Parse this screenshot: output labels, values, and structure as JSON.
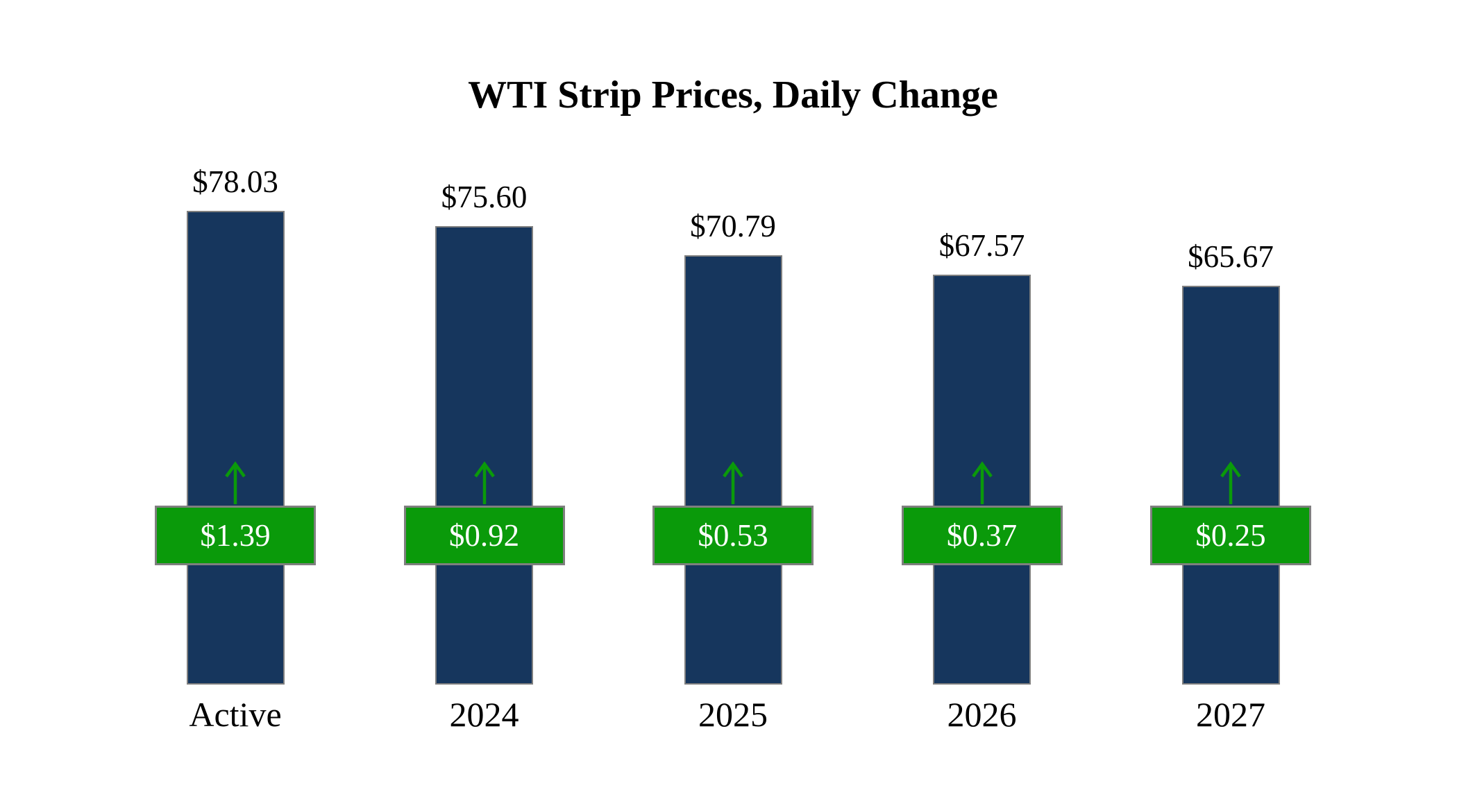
{
  "chart_data": {
    "type": "bar",
    "title": "WTI Strip Prices, Daily Change",
    "categories": [
      "Active",
      "2024",
      "2025",
      "2026",
      "2027"
    ],
    "series": [
      {
        "name": "Strip Price",
        "values": [
          78.03,
          75.6,
          70.79,
          67.57,
          65.67
        ]
      },
      {
        "name": "Daily Change",
        "values": [
          1.39,
          0.92,
          0.53,
          0.37,
          0.25
        ]
      }
    ],
    "value_labels": [
      "$78.03",
      "$75.60",
      "$70.79",
      "$67.57",
      "$65.67"
    ],
    "change_labels": [
      "$1.39",
      "$0.92",
      "$0.53",
      "$0.37",
      "$0.25"
    ],
    "change_direction": "up",
    "ylim": [
      0,
      85
    ],
    "grid": false,
    "legend": "none",
    "colors": {
      "bar": "#16365d",
      "bar_border": "#7f7f7f",
      "badge": "#0a9a0a",
      "badge_border": "#7f7f7f",
      "badge_text": "#ffffff",
      "arrow": "#0a9a0a",
      "title_text": "#000000",
      "label_text": "#000000",
      "background": "#ffffff"
    }
  }
}
